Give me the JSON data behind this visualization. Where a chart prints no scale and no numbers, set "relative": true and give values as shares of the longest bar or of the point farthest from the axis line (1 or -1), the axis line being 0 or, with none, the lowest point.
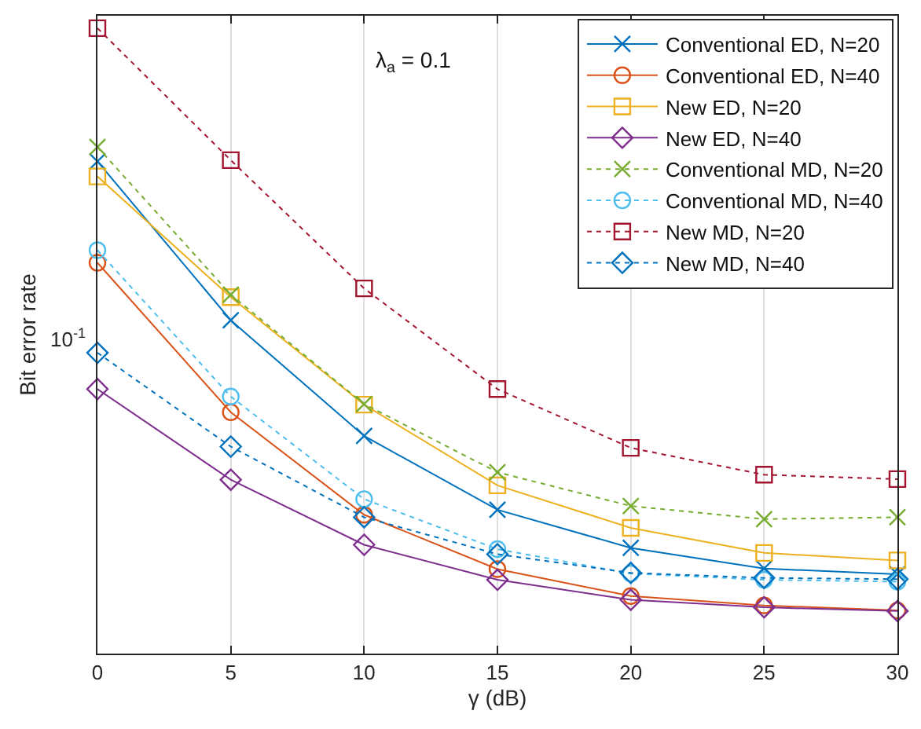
{
  "chart_data": {
    "type": "line",
    "xlabel": "γ (dB)",
    "ylabel": "Bit error rate",
    "annotations": [
      "λ$_{a}$ = 0.1",
      "10$^{-1}$"
    ],
    "x": [
      0,
      5,
      10,
      15,
      20,
      25,
      30
    ],
    "xlim": [
      0,
      30
    ],
    "xticks": [
      0,
      5,
      10,
      15,
      20,
      25,
      30
    ],
    "relative": true,
    "grid": "x",
    "legend": "top right",
    "series": [
      {
        "name": "Conventional ED, N=20",
        "color": "#0072bd",
        "marker": "cross",
        "line_style": "solid",
        "values": [
          0.787,
          0.533,
          0.348,
          0.23,
          0.169,
          0.136,
          0.127
        ]
      },
      {
        "name": "Conventional ED, N=40",
        "color": "#d95319",
        "marker": "circle",
        "line_style": "solid",
        "values": [
          0.625,
          0.386,
          0.222,
          0.135,
          0.092,
          0.077,
          0.069
        ]
      },
      {
        "name": "New ED, N=20",
        "color": "#edb120",
        "marker": "square",
        "line_style": "solid",
        "values": [
          0.763,
          0.57,
          0.398,
          0.269,
          0.201,
          0.161,
          0.149
        ]
      },
      {
        "name": "New ED, N=40",
        "color": "#7e2f8e",
        "marker": "diamond",
        "line_style": "solid",
        "values": [
          0.423,
          0.278,
          0.174,
          0.118,
          0.086,
          0.074,
          0.068
        ]
      },
      {
        "name": "Conventional MD, N=20",
        "color": "#77ac30",
        "marker": "cross",
        "line_style": "dotted",
        "values": [
          0.81,
          0.574,
          0.399,
          0.29,
          0.236,
          0.215,
          0.218
        ]
      },
      {
        "name": "Conventional MD, N=40",
        "color": "#4dbeee",
        "marker": "circle",
        "line_style": "dotted",
        "values": [
          0.645,
          0.411,
          0.247,
          0.167,
          0.128,
          0.118,
          0.115
        ]
      },
      {
        "name": "New MD, N=20",
        "color": "#a2142f",
        "marker": "square",
        "line_style": "dotted",
        "values": [
          1,
          0.789,
          0.584,
          0.423,
          0.329,
          0.286,
          0.279
        ]
      },
      {
        "name": "New MD, N=40",
        "color": "#0072bd",
        "marker": "diamond",
        "line_style": "dotted",
        "values": [
          0.481,
          0.331,
          0.218,
          0.159,
          0.129,
          0.121,
          0.119
        ]
      }
    ]
  }
}
